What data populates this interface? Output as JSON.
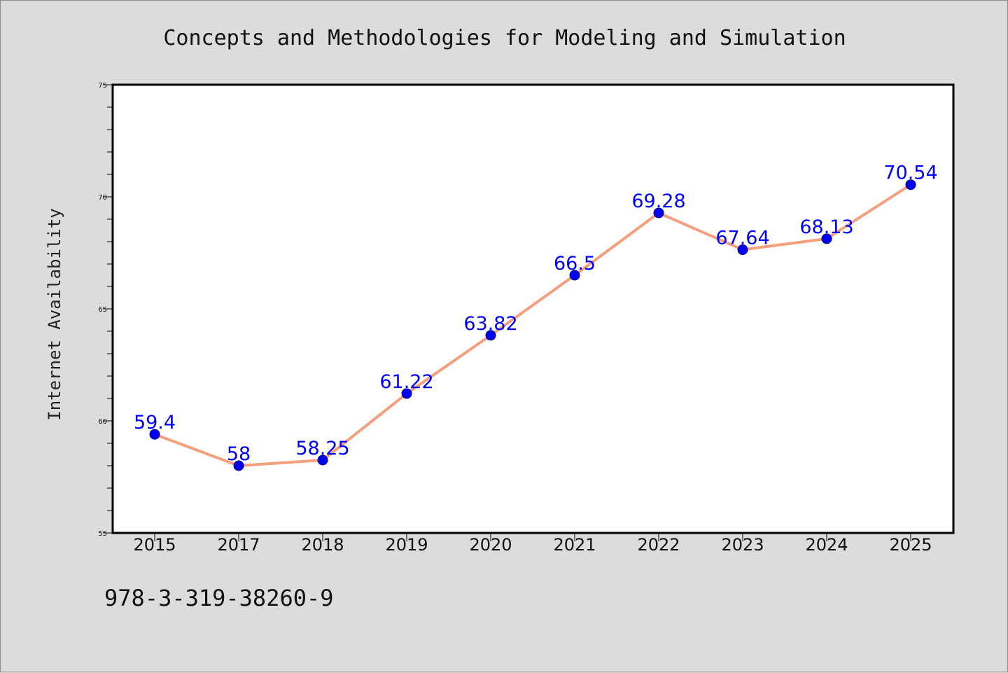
{
  "chart_data": {
    "type": "line",
    "title": "Concepts and Methodologies for Modeling and Simulation",
    "xlabel": "",
    "ylabel": "Internet Availability",
    "categories": [
      "2015",
      "2017",
      "2018",
      "2019",
      "2020",
      "2021",
      "2022",
      "2023",
      "2024",
      "2025"
    ],
    "series": [
      {
        "values": [
          59.4,
          58,
          58.25,
          61.22,
          63.82,
          66.5,
          69.28,
          67.64,
          68.13,
          70.54
        ],
        "labels": [
          "59.4",
          "58",
          "58.25",
          "61.22",
          "63.82",
          "66.5",
          "69.28",
          "67.64",
          "68.13",
          "70.54"
        ]
      }
    ],
    "ylim": [
      55,
      75
    ],
    "yticks": [
      55,
      60,
      65,
      70,
      75
    ],
    "grid": false,
    "legend": "none",
    "colors": {
      "line": "#f4a07f",
      "marker": "#0000ee",
      "marker_edge": "#000080",
      "data_label": "#0000ff",
      "axes_bg": "#ffffff",
      "figure_bg": "#dcdcdc"
    }
  },
  "footer": {
    "isbn": "978-3-319-38260-9"
  }
}
